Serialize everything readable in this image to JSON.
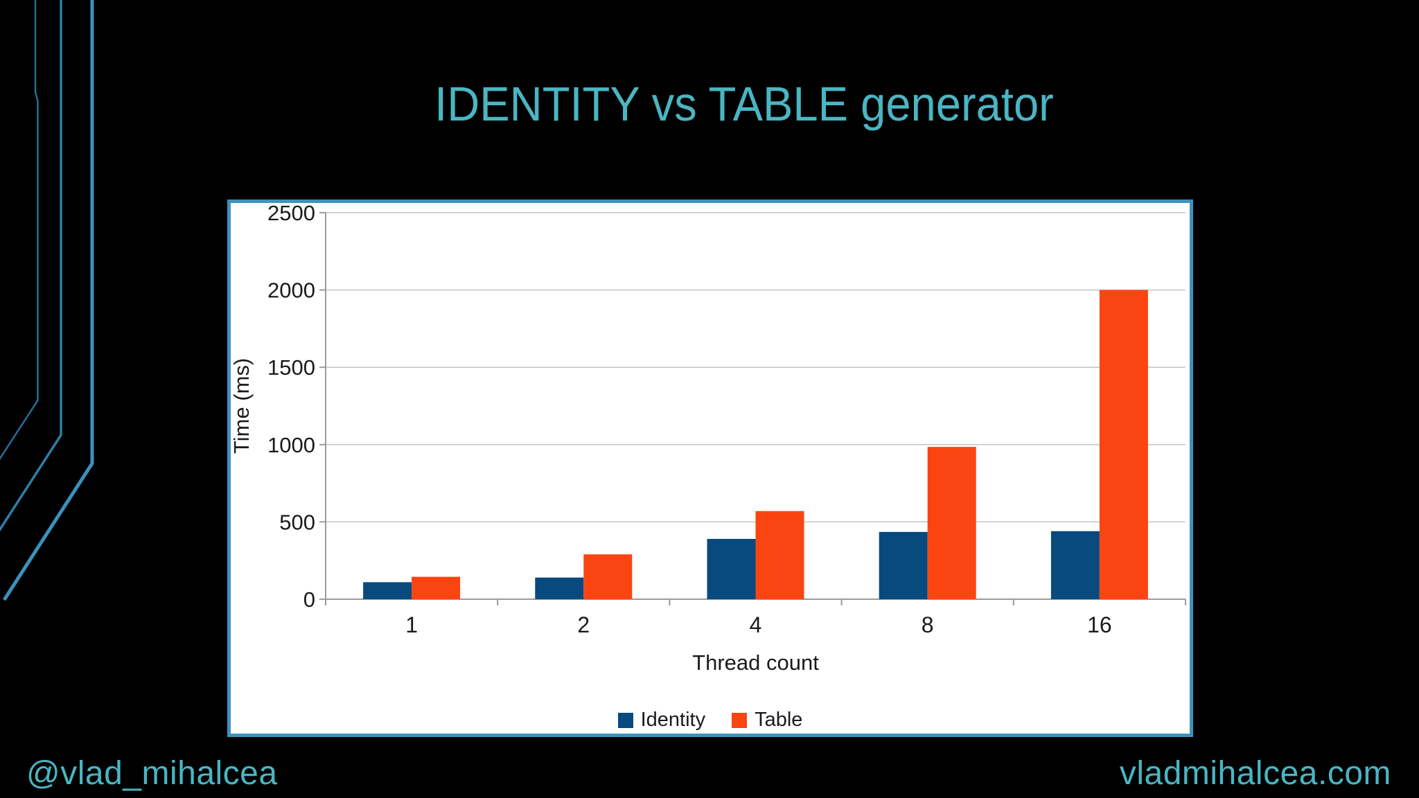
{
  "slide": {
    "title": "IDENTITY vs TABLE generator",
    "footer_left": "@vlad_mihalcea",
    "footer_right": "vladmihalcea.com"
  },
  "colors": {
    "background": "#000000",
    "title_text": "#4ab5c3",
    "footer_text": "#4ab5c3",
    "chart_frame_border": "#3b92bd",
    "chart_background": "#ffffff",
    "deco_line_outer": "#256f96",
    "deco_line_middle": "#2e7fa8",
    "deco_line_inner": "#3a92bd",
    "gridline": "#c3c3c3",
    "axis_line": "#9b9b9b",
    "chart_text": "#1a1a1a",
    "identity_bar": "#084a7e",
    "table_bar": "#fa4512"
  },
  "chart_data": {
    "type": "bar",
    "title": "",
    "categories": [
      "1",
      "2",
      "4",
      "8",
      "16"
    ],
    "series": [
      {
        "name": "Identity",
        "color": "#084a7e",
        "values": [
          110,
          140,
          390,
          435,
          440
        ]
      },
      {
        "name": "Table",
        "color": "#fa4512",
        "values": [
          145,
          290,
          570,
          985,
          2000
        ]
      }
    ],
    "xlabel": "Thread count",
    "ylabel": "Time (ms)",
    "ylim": [
      0,
      2500
    ],
    "yticks": [
      0,
      500,
      1000,
      1500,
      2000,
      2500
    ],
    "grid": true,
    "legend_position": "bottom"
  }
}
